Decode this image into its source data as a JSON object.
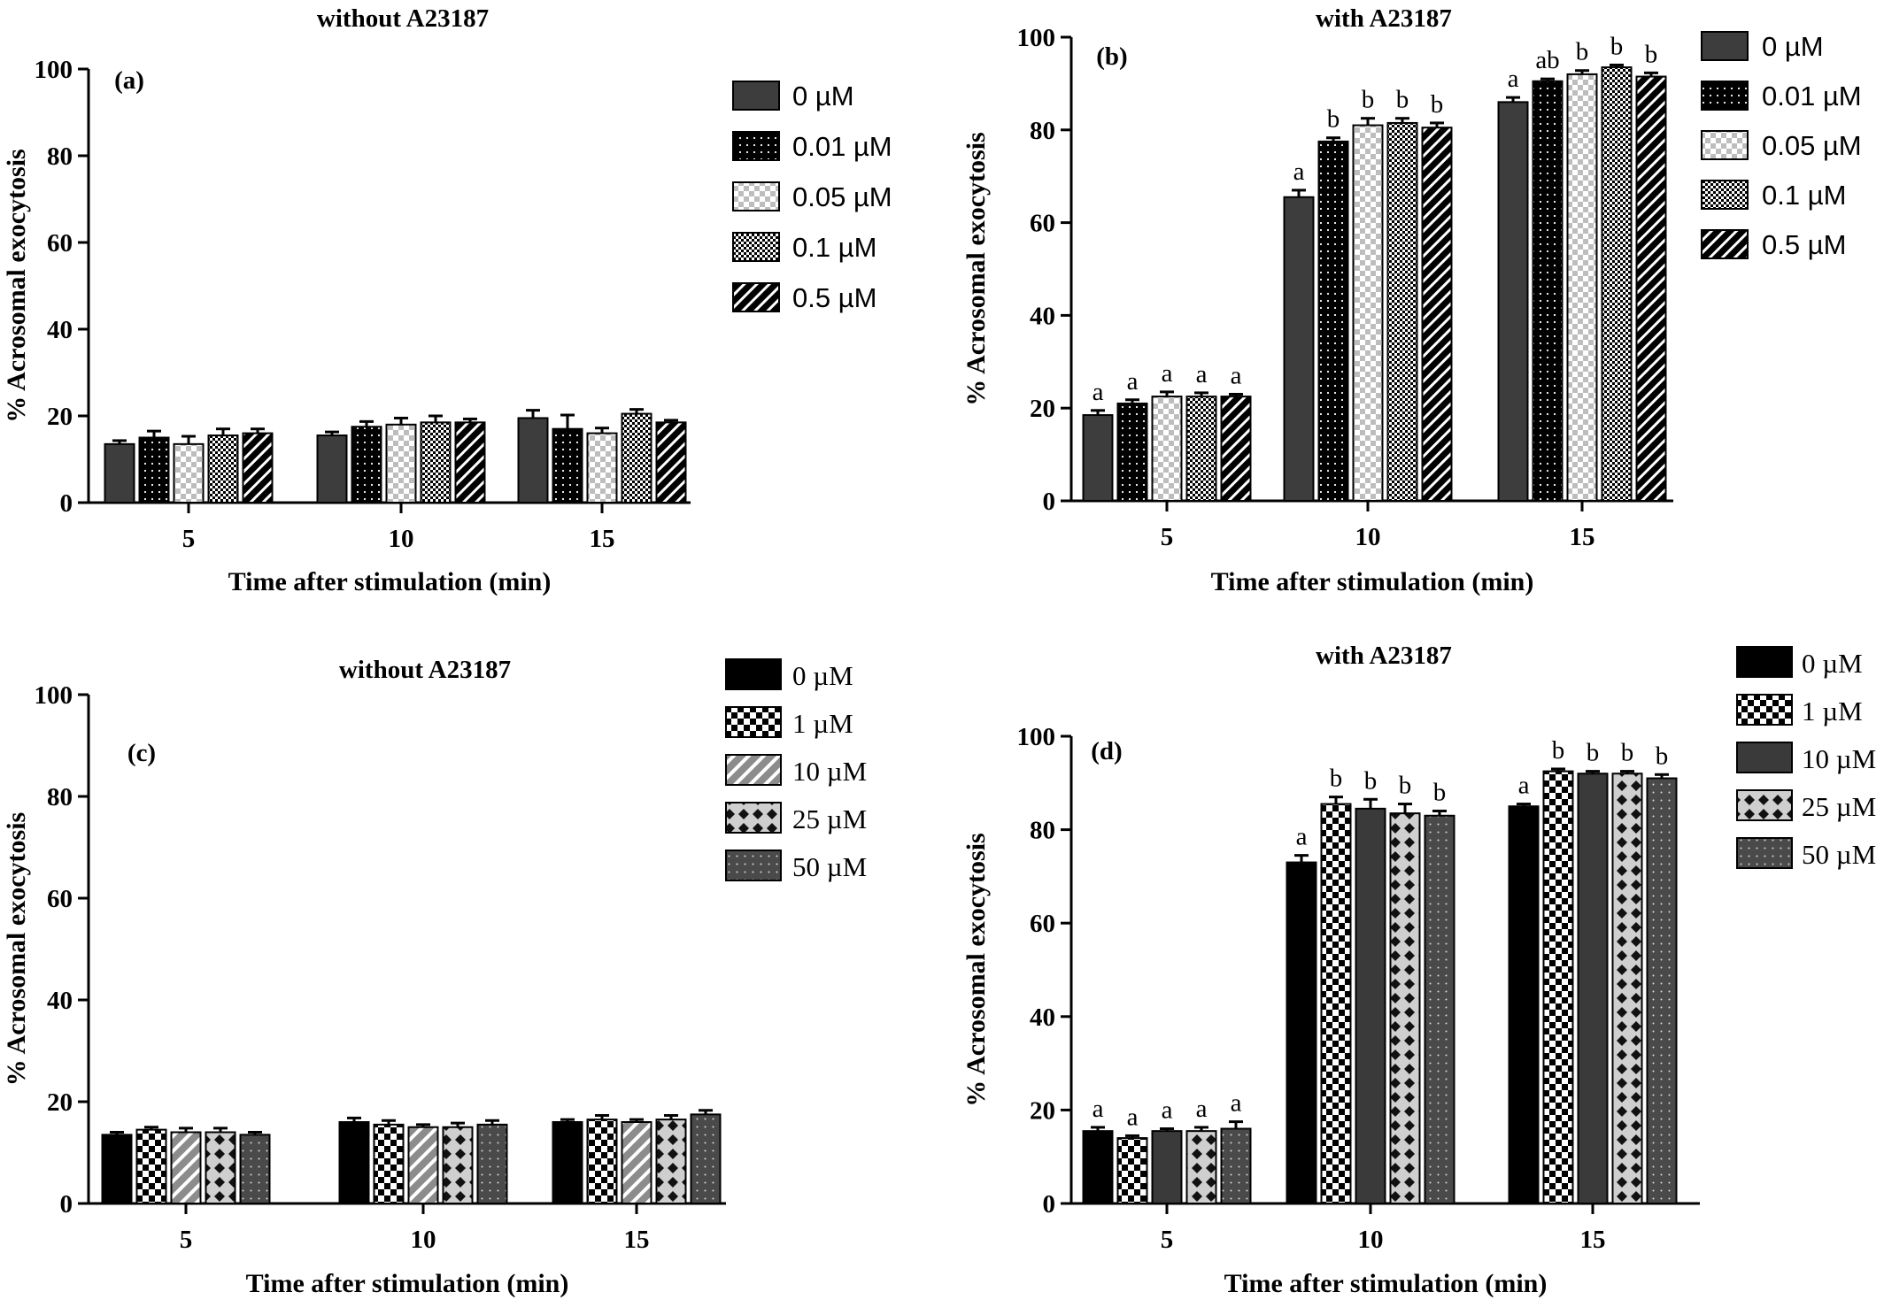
{
  "chart_data": [
    {
      "type": "bar",
      "panel": "(a)",
      "title": "without A23187",
      "xlabel": "Time after stimulation (min)",
      "ylabel": "% Acrosomal exocytosis",
      "ylim": [
        0,
        100
      ],
      "yticks": [
        "0",
        "20",
        "40",
        "60",
        "80",
        "100"
      ],
      "categories": [
        "5",
        "10",
        "15"
      ],
      "legend_position": "right",
      "series": [
        {
          "name": "0 µM",
          "pattern": "solid-gray",
          "values": [
            13.5,
            15.5,
            19.5
          ],
          "errors": [
            0.8,
            0.8,
            1.8
          ]
        },
        {
          "name": "0.01 µM",
          "pattern": "dots",
          "values": [
            15,
            17.5,
            17
          ],
          "errors": [
            1.5,
            1.2,
            3.2
          ]
        },
        {
          "name": "0.05 µM",
          "pattern": "checker-gray",
          "values": [
            13.5,
            18,
            16
          ],
          "errors": [
            1.8,
            1.5,
            1.2
          ]
        },
        {
          "name": "0.1 µM",
          "pattern": "checker-fine",
          "values": [
            15.5,
            18.5,
            20.5
          ],
          "errors": [
            1.5,
            1.5,
            1.0
          ]
        },
        {
          "name": "0.5 µM",
          "pattern": "stripes",
          "values": [
            16,
            18.5,
            18.5
          ],
          "errors": [
            1.0,
            0.8,
            0.5
          ]
        }
      ],
      "significance": []
    },
    {
      "type": "bar",
      "panel": "(b)",
      "title": "with A23187",
      "xlabel": "Time after stimulation (min)",
      "ylabel": "% Acrosomal exocytosis",
      "ylim": [
        0,
        100
      ],
      "yticks": [
        "0",
        "20",
        "40",
        "60",
        "80",
        "100"
      ],
      "categories": [
        "5",
        "10",
        "15"
      ],
      "legend_position": "top-right",
      "series": [
        {
          "name": "0 µM",
          "pattern": "solid-gray",
          "values": [
            18.5,
            65.5,
            86
          ],
          "errors": [
            1.0,
            1.5,
            1.0
          ]
        },
        {
          "name": "0.01 µM",
          "pattern": "dots",
          "values": [
            21,
            77.5,
            90.5
          ],
          "errors": [
            0.8,
            0.8,
            0.5
          ]
        },
        {
          "name": "0.05 µM",
          "pattern": "checker-gray",
          "values": [
            22.5,
            81,
            92
          ],
          "errors": [
            1.0,
            1.5,
            0.8
          ]
        },
        {
          "name": "0.1 µM",
          "pattern": "checker-fine",
          "values": [
            22.5,
            81.5,
            93.5
          ],
          "errors": [
            0.8,
            1.0,
            0.5
          ]
        },
        {
          "name": "0.5 µM",
          "pattern": "stripes",
          "values": [
            22.5,
            80.5,
            91.5
          ],
          "errors": [
            0.5,
            1.0,
            0.8
          ]
        }
      ],
      "significance": [
        [
          "a",
          "a",
          "a",
          "a",
          "a"
        ],
        [
          "a",
          "b",
          "b",
          "b",
          "b"
        ],
        [
          "a",
          "ab",
          "b",
          "b",
          "b"
        ]
      ]
    },
    {
      "type": "bar",
      "panel": "(c)",
      "title": "without A23187",
      "xlabel": "Time after stimulation (min)",
      "ylabel": "% Acrosomal exocytosis",
      "ylim": [
        0,
        100
      ],
      "yticks": [
        "0",
        "20",
        "40",
        "60",
        "80",
        "100"
      ],
      "categories": [
        "5",
        "10",
        "15"
      ],
      "legend_position": "top-right",
      "series": [
        {
          "name": "0 µM",
          "pattern": "solid-black",
          "values": [
            13.5,
            16,
            16
          ],
          "errors": [
            0.5,
            0.8,
            0.5
          ]
        },
        {
          "name": "1 µM",
          "pattern": "checker-bw",
          "values": [
            14.5,
            15.5,
            16.5
          ],
          "errors": [
            0.5,
            0.8,
            0.8
          ]
        },
        {
          "name": "10 µM",
          "pattern": "stripes-gray",
          "values": [
            14,
            15,
            16
          ],
          "errors": [
            0.8,
            0.5,
            0.5
          ]
        },
        {
          "name": "25 µM",
          "pattern": "diamond-gray",
          "values": [
            14,
            15,
            16.5
          ],
          "errors": [
            0.8,
            0.8,
            0.8
          ]
        },
        {
          "name": "50 µM",
          "pattern": "dots-dark",
          "values": [
            13.5,
            15.5,
            17.5
          ],
          "errors": [
            0.5,
            0.8,
            0.8
          ]
        }
      ],
      "significance": []
    },
    {
      "type": "bar",
      "panel": "(d)",
      "title": "with A23187",
      "xlabel": "Time after stimulation (min)",
      "ylabel": "% Acrosomal exocytosis",
      "ylim": [
        0,
        100
      ],
      "yticks": [
        "0",
        "20",
        "40",
        "60",
        "80",
        "100"
      ],
      "categories": [
        "5",
        "10",
        "15"
      ],
      "legend_position": "top-right",
      "series": [
        {
          "name": "0 µM",
          "pattern": "solid-black",
          "values": [
            15.5,
            73,
            85
          ],
          "errors": [
            0.8,
            1.5,
            0.5
          ]
        },
        {
          "name": "1 µM",
          "pattern": "checker-bw",
          "values": [
            14,
            85.5,
            92.5
          ],
          "errors": [
            0.5,
            1.5,
            0.5
          ]
        },
        {
          "name": "10 µM",
          "pattern": "solid-dark",
          "values": [
            15.5,
            84.5,
            92
          ],
          "errors": [
            0.5,
            2.0,
            0.5
          ]
        },
        {
          "name": "25 µM",
          "pattern": "diamond-gray",
          "values": [
            15.5,
            83.5,
            92
          ],
          "errors": [
            0.8,
            2.0,
            0.5
          ]
        },
        {
          "name": "50 µM",
          "pattern": "dots-dark",
          "values": [
            16,
            83,
            91
          ],
          "errors": [
            1.5,
            1.0,
            0.8
          ]
        }
      ],
      "significance": [
        [
          "a",
          "a",
          "a",
          "a",
          "a"
        ],
        [
          "a",
          "b",
          "b",
          "b",
          "b"
        ],
        [
          "a",
          "b",
          "b",
          "b",
          "b"
        ]
      ]
    }
  ]
}
